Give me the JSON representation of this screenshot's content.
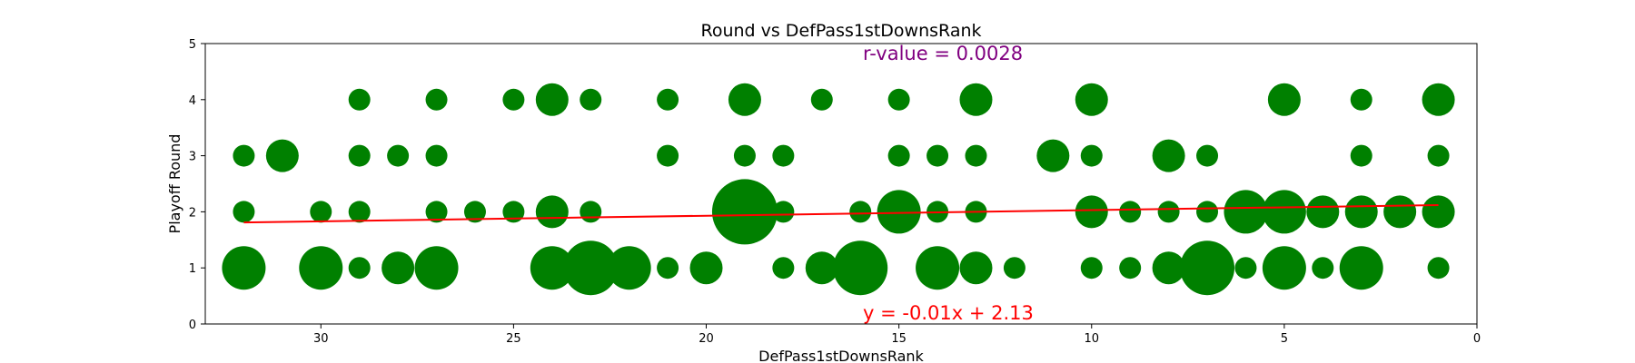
{
  "chart_data": {
    "type": "scatter",
    "title": "Round vs DefPass1stDownsRank",
    "xlabel": "DefPass1stDownsRank",
    "ylabel": "Playoff Round",
    "xlim": [
      33,
      0
    ],
    "ylim": [
      0,
      5
    ],
    "x_ticks": [
      30,
      25,
      20,
      15,
      10,
      5,
      0
    ],
    "y_ticks": [
      0,
      1,
      2,
      3,
      4,
      5
    ],
    "x_tick_labels": [
      "30",
      "25",
      "20",
      "15",
      "10",
      "5",
      "0"
    ],
    "y_tick_labels": [
      "0",
      "1",
      "2",
      "3",
      "4",
      "5"
    ],
    "grid": false,
    "marker_color": "#008000",
    "line_color": "#ff0000",
    "points": [
      {
        "x": 32,
        "y": 4,
        "count": 0
      },
      {
        "x": 29,
        "y": 4,
        "count": 1
      },
      {
        "x": 27,
        "y": 4,
        "count": 1
      },
      {
        "x": 25,
        "y": 4,
        "count": 1
      },
      {
        "x": 24,
        "y": 4,
        "count": 2
      },
      {
        "x": 23,
        "y": 4,
        "count": 1
      },
      {
        "x": 21,
        "y": 4,
        "count": 1
      },
      {
        "x": 19,
        "y": 4,
        "count": 2
      },
      {
        "x": 17,
        "y": 4,
        "count": 1
      },
      {
        "x": 15,
        "y": 4,
        "count": 1
      },
      {
        "x": 13,
        "y": 4,
        "count": 2
      },
      {
        "x": 10,
        "y": 4,
        "count": 2
      },
      {
        "x": 5,
        "y": 4,
        "count": 2
      },
      {
        "x": 3,
        "y": 4,
        "count": 1
      },
      {
        "x": 1,
        "y": 4,
        "count": 2
      },
      {
        "x": 32,
        "y": 3,
        "count": 1
      },
      {
        "x": 31,
        "y": 3,
        "count": 2
      },
      {
        "x": 29,
        "y": 3,
        "count": 1
      },
      {
        "x": 28,
        "y": 3,
        "count": 1
      },
      {
        "x": 27,
        "y": 3,
        "count": 1
      },
      {
        "x": 21,
        "y": 3,
        "count": 1
      },
      {
        "x": 19,
        "y": 3,
        "count": 1
      },
      {
        "x": 18,
        "y": 3,
        "count": 1
      },
      {
        "x": 15,
        "y": 3,
        "count": 1
      },
      {
        "x": 14,
        "y": 3,
        "count": 1
      },
      {
        "x": 13,
        "y": 3,
        "count": 1
      },
      {
        "x": 11,
        "y": 3,
        "count": 2
      },
      {
        "x": 10,
        "y": 3,
        "count": 1
      },
      {
        "x": 8,
        "y": 3,
        "count": 2
      },
      {
        "x": 7,
        "y": 3,
        "count": 1
      },
      {
        "x": 3,
        "y": 3,
        "count": 1
      },
      {
        "x": 1,
        "y": 3,
        "count": 1
      },
      {
        "x": 32,
        "y": 2,
        "count": 1
      },
      {
        "x": 30,
        "y": 2,
        "count": 1
      },
      {
        "x": 29,
        "y": 2,
        "count": 1
      },
      {
        "x": 27,
        "y": 2,
        "count": 1
      },
      {
        "x": 26,
        "y": 2,
        "count": 1
      },
      {
        "x": 25,
        "y": 2,
        "count": 1
      },
      {
        "x": 24,
        "y": 2,
        "count": 2
      },
      {
        "x": 23,
        "y": 2,
        "count": 1
      },
      {
        "x": 19,
        "y": 2,
        "count": 5
      },
      {
        "x": 18,
        "y": 2,
        "count": 1
      },
      {
        "x": 16,
        "y": 2,
        "count": 1
      },
      {
        "x": 15,
        "y": 2,
        "count": 3
      },
      {
        "x": 14,
        "y": 2,
        "count": 1
      },
      {
        "x": 13,
        "y": 2,
        "count": 1
      },
      {
        "x": 10,
        "y": 2,
        "count": 2
      },
      {
        "x": 9,
        "y": 2,
        "count": 1
      },
      {
        "x": 8,
        "y": 2,
        "count": 1
      },
      {
        "x": 7,
        "y": 2,
        "count": 1
      },
      {
        "x": 6,
        "y": 2,
        "count": 3
      },
      {
        "x": 5,
        "y": 2,
        "count": 3
      },
      {
        "x": 4,
        "y": 2,
        "count": 2
      },
      {
        "x": 3,
        "y": 2,
        "count": 2
      },
      {
        "x": 2,
        "y": 2,
        "count": 2
      },
      {
        "x": 1,
        "y": 2,
        "count": 2
      },
      {
        "x": 32,
        "y": 1,
        "count": 3
      },
      {
        "x": 30,
        "y": 1,
        "count": 3
      },
      {
        "x": 29,
        "y": 1,
        "count": 1
      },
      {
        "x": 28,
        "y": 1,
        "count": 2
      },
      {
        "x": 27,
        "y": 1,
        "count": 3
      },
      {
        "x": 24,
        "y": 1,
        "count": 3
      },
      {
        "x": 23,
        "y": 1,
        "count": 4
      },
      {
        "x": 22,
        "y": 1,
        "count": 3
      },
      {
        "x": 21,
        "y": 1,
        "count": 1
      },
      {
        "x": 20,
        "y": 1,
        "count": 2
      },
      {
        "x": 18,
        "y": 1,
        "count": 1
      },
      {
        "x": 17,
        "y": 1,
        "count": 2
      },
      {
        "x": 16,
        "y": 1,
        "count": 4
      },
      {
        "x": 14,
        "y": 1,
        "count": 3
      },
      {
        "x": 13,
        "y": 1,
        "count": 2
      },
      {
        "x": 12,
        "y": 1,
        "count": 1
      },
      {
        "x": 10,
        "y": 1,
        "count": 1
      },
      {
        "x": 9,
        "y": 1,
        "count": 1
      },
      {
        "x": 8,
        "y": 1,
        "count": 2
      },
      {
        "x": 7,
        "y": 1,
        "count": 4
      },
      {
        "x": 6,
        "y": 1,
        "count": 1
      },
      {
        "x": 5,
        "y": 1,
        "count": 3
      },
      {
        "x": 4,
        "y": 1,
        "count": 1
      },
      {
        "x": 3,
        "y": 1,
        "count": 3
      },
      {
        "x": 1,
        "y": 1,
        "count": 1
      }
    ],
    "trend_line": {
      "slope": -0.01,
      "intercept": 2.13,
      "x_range": [
        32,
        1
      ]
    },
    "annotations": {
      "r_value": {
        "text": "r-value = 0.0028",
        "color": "#800080"
      },
      "equation": {
        "text": "y = -0.01x + 2.13",
        "color": "#ff0000"
      }
    }
  }
}
